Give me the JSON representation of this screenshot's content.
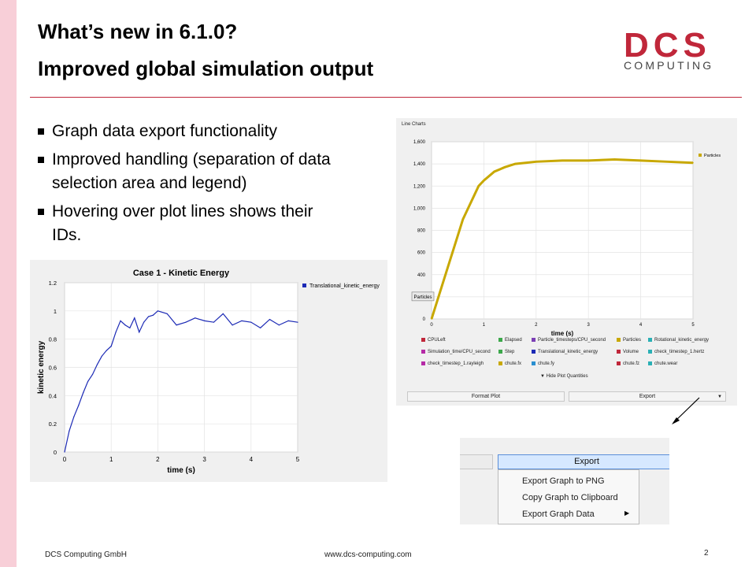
{
  "slide": {
    "title": "What’s new in 6.1.0?",
    "subtitle": "Improved global simulation output",
    "logo_main": "DCS",
    "logo_sub": "COMPUTING",
    "bullets": [
      "Graph data export functionality",
      "Improved handling (separation of data selection area and legend)",
      "Hovering over plot lines shows their IDs."
    ],
    "footer_left": "DCS Computing GmbH",
    "footer_center": "www.dcs-computing.com",
    "page_number": "2",
    "colors": {
      "accent": "#c0273a",
      "side_bar": "#f8cfd8"
    }
  },
  "kinetic_chart": {
    "chart_data": {
      "type": "line",
      "title": "Case 1 - Kinetic Energy",
      "xlabel": "time (s)",
      "ylabel": "kinetic energy",
      "xlim": [
        0,
        5
      ],
      "ylim": [
        0,
        1.2
      ],
      "xticks": [
        "0",
        "1",
        "2",
        "3",
        "4",
        "5"
      ],
      "yticks": [
        "0",
        "0.2",
        "0.4",
        "0.6",
        "0.8",
        "1",
        "1.2"
      ],
      "grid": true,
      "legend_position": "top-right",
      "series": [
        {
          "name": "Translational_kinetic_energy",
          "color": "#1c2ab5",
          "x": [
            0,
            0.1,
            0.2,
            0.3,
            0.4,
            0.5,
            0.6,
            0.7,
            0.8,
            0.9,
            1.0,
            1.1,
            1.2,
            1.3,
            1.4,
            1.5,
            1.6,
            1.7,
            1.8,
            1.9,
            2.0,
            2.2,
            2.4,
            2.6,
            2.8,
            3.0,
            3.2,
            3.4,
            3.6,
            3.8,
            4.0,
            4.2,
            4.4,
            4.6,
            4.8,
            5.0
          ],
          "y": [
            0,
            0.15,
            0.25,
            0.33,
            0.42,
            0.5,
            0.55,
            0.62,
            0.68,
            0.72,
            0.75,
            0.85,
            0.93,
            0.9,
            0.88,
            0.95,
            0.85,
            0.92,
            0.96,
            0.97,
            1.0,
            0.98,
            0.9,
            0.92,
            0.95,
            0.93,
            0.92,
            0.98,
            0.9,
            0.93,
            0.92,
            0.88,
            0.94,
            0.9,
            0.93,
            0.92
          ]
        }
      ]
    }
  },
  "line_charts_panel": {
    "header": "Line Charts",
    "chart_data": {
      "type": "line",
      "title": "",
      "xlabel": "time (s)",
      "ylabel": "",
      "xlim": [
        0,
        5
      ],
      "ylim": [
        0,
        1600
      ],
      "xticks": [
        "0",
        "1",
        "2",
        "3",
        "4",
        "5"
      ],
      "yticks": [
        "0",
        "200",
        "400",
        "600",
        "800",
        "1,000",
        "1,200",
        "1,400",
        "1,600"
      ],
      "grid": true,
      "legend_position": "top-right",
      "series": [
        {
          "name": "Particles",
          "color": "#c8a800",
          "x": [
            0,
            0.1,
            0.2,
            0.3,
            0.4,
            0.5,
            0.6,
            0.7,
            0.8,
            0.9,
            1.0,
            1.2,
            1.4,
            1.6,
            1.8,
            2.0,
            2.5,
            3.0,
            3.5,
            4.0,
            4.5,
            5.0
          ],
          "y": [
            0,
            150,
            300,
            450,
            600,
            750,
            900,
            1000,
            1100,
            1200,
            1250,
            1330,
            1370,
            1400,
            1410,
            1420,
            1430,
            1430,
            1440,
            1430,
            1420,
            1410
          ]
        }
      ]
    },
    "tooltip": "Particles",
    "legend_items": [
      {
        "label": "CPULeft",
        "color": "#c0273a"
      },
      {
        "label": "Elapsed",
        "color": "#3ca84b"
      },
      {
        "label": "Particle_timesteps/CPU_second",
        "color": "#7b3fb5"
      },
      {
        "label": "Particles",
        "color": "#c8a800"
      },
      {
        "label": "Rotational_kinetic_energy",
        "color": "#2ab0b5"
      },
      {
        "label": "Simulation_time/CPU_second",
        "color": "#b52aa6"
      },
      {
        "label": "Step",
        "color": "#3ca84b"
      },
      {
        "label": "Translational_kinetic_energy",
        "color": "#1c2ab5"
      },
      {
        "label": "Volume",
        "color": "#c0273a"
      },
      {
        "label": "check_timestep_1.hertz",
        "color": "#2ab0b5"
      },
      {
        "label": "check_timestep_1.rayleigh",
        "color": "#b52aa6"
      },
      {
        "label": "chute.fx",
        "color": "#c8a800"
      },
      {
        "label": "chute.fy",
        "color": "#2a8fd0"
      },
      {
        "label": "chute.fz",
        "color": "#c0273a"
      },
      {
        "label": "chute.wear",
        "color": "#2ab0b5"
      }
    ],
    "hide_quantities_label": "Hide Plot Quantities",
    "format_plot_label": "Format Plot",
    "export_label": "Export"
  },
  "export_menu": {
    "export_button_label": "Export",
    "items": [
      "Export Graph to PNG",
      "Copy Graph to Clipboard",
      "Export Graph Data"
    ]
  }
}
